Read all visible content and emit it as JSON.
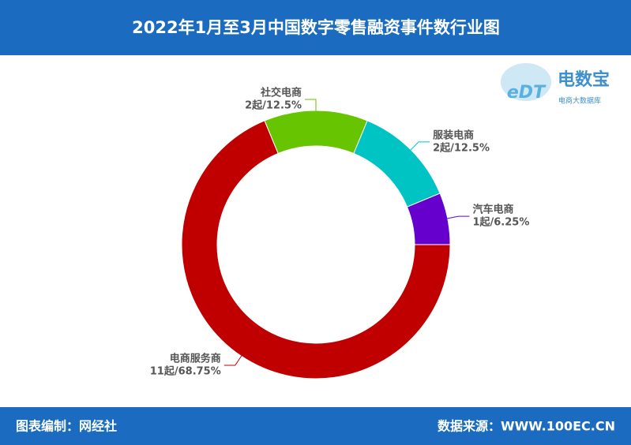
{
  "chart_data": {
    "type": "donut",
    "title": "2022年1月至3月中国数字零售融资事件数行业图",
    "categories": [
      "汽车电商",
      "服装电商",
      "社交电商",
      "电商服务商"
    ],
    "values": [
      1,
      2,
      2,
      11
    ],
    "value_labels": [
      "1起/6.25%",
      "2起/12.5%",
      "2起/12.5%",
      "11起/68.75%"
    ],
    "colors": [
      "#6600cc",
      "#00c4c4",
      "#66c400",
      "#c00000"
    ]
  },
  "logo": {
    "mark": "eDT",
    "name": "电数宝",
    "subtitle": "电商大数据库"
  },
  "footer": {
    "left": "图表编制：网经社",
    "right": "数据来源：WWW.100EC.CN"
  }
}
